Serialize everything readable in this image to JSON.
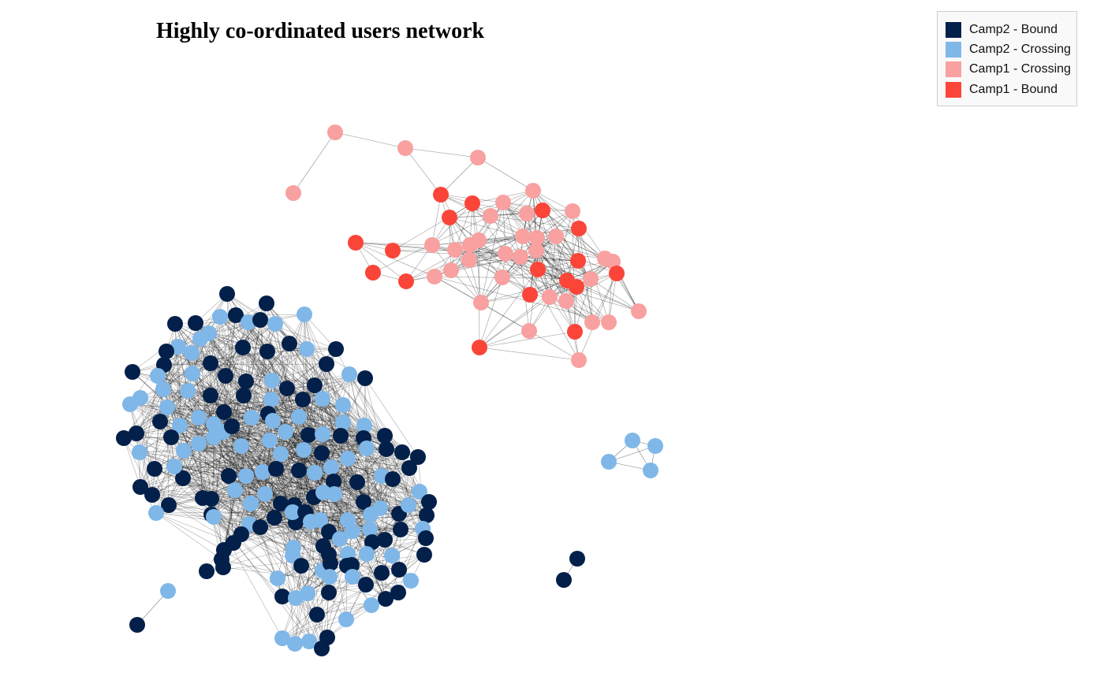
{
  "title": "Highly co-ordinated users network",
  "legend": {
    "items": [
      {
        "label": "Camp2 - Bound",
        "color": "#03204a"
      },
      {
        "label": "Camp2 - Crossing",
        "color": "#7fb7e8"
      },
      {
        "label": "Camp1 - Crossing",
        "color": "#f8a1a0"
      },
      {
        "label": "Camp1 - Bound",
        "color": "#fb4539"
      }
    ]
  }
}
